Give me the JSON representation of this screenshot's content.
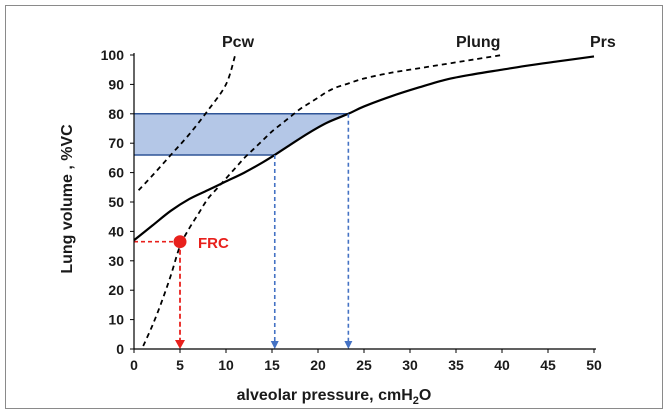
{
  "chart_data": {
    "type": "line",
    "xlabel": "alveolar pressure, cmH",
    "xlabel_sub": "2",
    "xlabel_tail": "O",
    "ylabel": "Lung volume , %VC",
    "xlim": [
      0,
      50
    ],
    "ylim": [
      0,
      100
    ],
    "xticks": [
      "0",
      "5",
      "10",
      "15",
      "20",
      "25",
      "30",
      "35",
      "40",
      "45",
      "50"
    ],
    "yticks": [
      "0",
      "10",
      "20",
      "30",
      "40",
      "50",
      "60",
      "70",
      "80",
      "90",
      "100"
    ],
    "grid": false,
    "series": [
      {
        "name": "Prs",
        "style": "solid",
        "color": "#000000",
        "x": [
          0,
          2,
          4,
          6,
          8,
          10,
          12,
          14,
          15.3,
          17,
          19,
          21,
          23.3,
          25,
          28,
          31,
          34,
          37,
          40,
          43,
          46,
          50
        ],
        "y": [
          37,
          42,
          47,
          51,
          54,
          57,
          60,
          63.5,
          66,
          69.5,
          73.5,
          77,
          80,
          82.5,
          86,
          89,
          91.7,
          93.5,
          95,
          96.5,
          97.8,
          99.5
        ]
      },
      {
        "name": "Plung",
        "style": "dashed",
        "color": "#000000",
        "x": [
          1,
          2,
          3,
          4,
          5,
          6,
          7,
          8,
          9,
          10,
          11,
          12,
          13,
          14,
          15,
          16,
          17,
          18,
          19,
          20,
          21,
          22,
          23,
          25,
          28,
          31,
          34,
          37,
          40
        ],
        "y": [
          1,
          8,
          16,
          25,
          35,
          41,
          46,
          51,
          54.5,
          58,
          61.5,
          65,
          68,
          71,
          74,
          76.5,
          79,
          81.5,
          83.5,
          85.5,
          87.5,
          89,
          90,
          92,
          94,
          95.5,
          97,
          98.5,
          100
        ]
      },
      {
        "name": "Pcw",
        "style": "dashed",
        "color": "#000000",
        "x": [
          0.5,
          2,
          4,
          6,
          8,
          10,
          11
        ],
        "y": [
          54,
          59,
          66,
          73,
          81,
          90,
          100
        ]
      }
    ],
    "shaded_region": {
      "y": [
        66,
        80
      ],
      "x_left": 0,
      "color": "#b4c7e7",
      "edge_color": "#2f5597"
    },
    "drop_lines": [
      {
        "x": 15.3,
        "y": 66,
        "color": "#4472c4"
      },
      {
        "x": 23.3,
        "y": 80,
        "color": "#4472c4"
      }
    ],
    "frc": {
      "label": "FRC",
      "x": 5,
      "y": 36.5,
      "color": "#e8201c"
    }
  }
}
